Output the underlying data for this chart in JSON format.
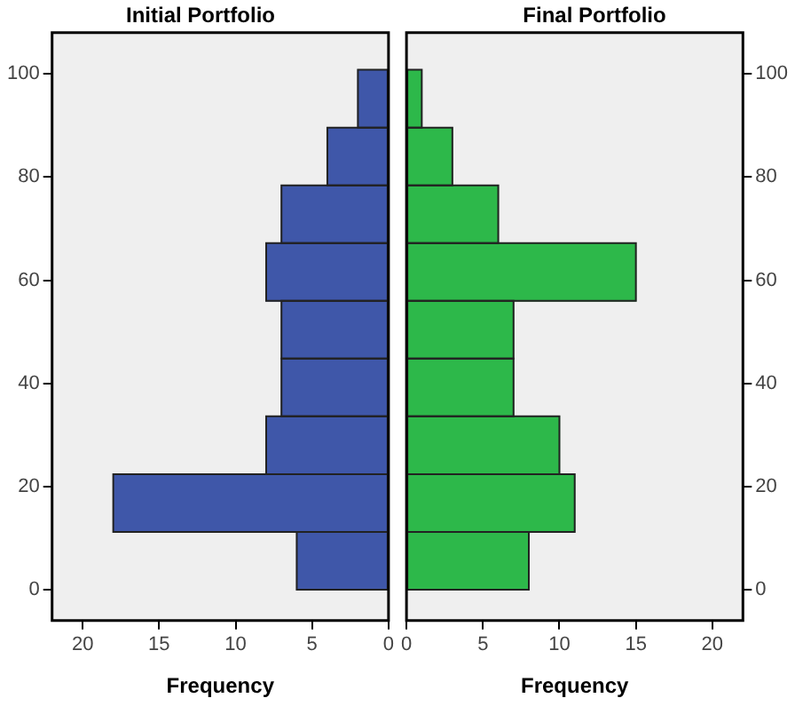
{
  "chart_data": [
    {
      "type": "histogram",
      "orientation": "horizontal",
      "title": "Initial Portfolio",
      "xlabel": "Frequency",
      "color": "#3f57a9",
      "bins": [
        0,
        11.2,
        22.4,
        33.6,
        44.8,
        56,
        67.2,
        78.4,
        89.6,
        100.8
      ],
      "values": [
        6,
        18,
        8,
        7,
        7,
        8,
        7,
        4,
        2
      ],
      "xlim": [
        22,
        0
      ],
      "xticks": [
        20,
        15,
        10,
        5,
        0
      ],
      "ylim": [
        -6,
        108
      ],
      "yticks": [
        0,
        20,
        40,
        60,
        80,
        100
      ],
      "grid": false,
      "legend": false
    },
    {
      "type": "histogram",
      "orientation": "horizontal",
      "title": "Final Portfolio",
      "xlabel": "Frequency",
      "color": "#2db84a",
      "bins": [
        0,
        11.2,
        22.4,
        33.6,
        44.8,
        56,
        67.2,
        78.4,
        89.6,
        100.8
      ],
      "values": [
        8,
        11,
        10,
        7,
        7,
        15,
        6,
        3,
        1
      ],
      "xlim": [
        0,
        22
      ],
      "xticks": [
        0,
        5,
        10,
        15,
        20
      ],
      "ylim": [
        -6,
        108
      ],
      "yticks": [
        0,
        20,
        40,
        60,
        80,
        100
      ],
      "grid": false,
      "legend": false
    }
  ]
}
